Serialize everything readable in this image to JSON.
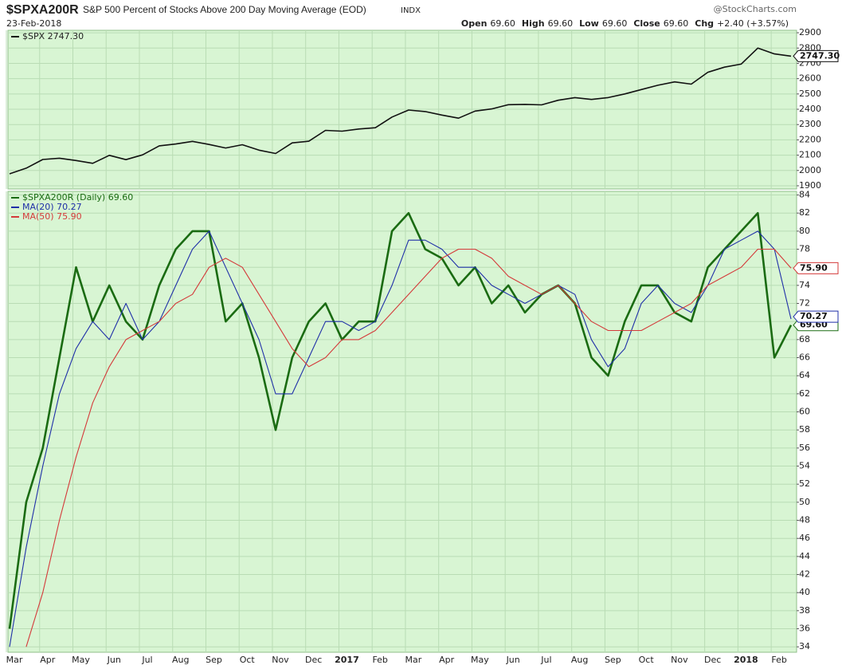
{
  "header": {
    "symbol": "$SPXA200R",
    "description": "S&P 500 Percent of Stocks Above 200 Day Moving Average (EOD)",
    "exchange": "INDX",
    "date": "23-Feb-2018",
    "source": "@StockCharts.com",
    "quote": [
      {
        "label": "Open",
        "value": "69.60"
      },
      {
        "label": "High",
        "value": "69.60"
      },
      {
        "label": "Low",
        "value": "69.60"
      },
      {
        "label": "Close",
        "value": "69.60"
      },
      {
        "label": "Chg",
        "value": "+2.40 (+3.57%)"
      }
    ]
  },
  "chart_data": [
    {
      "type": "line",
      "x": [
        "2016-03",
        "2016-03",
        "2016-04",
        "2016-04",
        "2016-05",
        "2016-05",
        "2016-06",
        "2016-06",
        "2016-07",
        "2016-07",
        "2016-08",
        "2016-08",
        "2016-09",
        "2016-09",
        "2016-10",
        "2016-10",
        "2016-11",
        "2016-11",
        "2016-12",
        "2016-12",
        "2017-01",
        "2017-01",
        "2017-02",
        "2017-02",
        "2017-03",
        "2017-03",
        "2017-04",
        "2017-04",
        "2017-05",
        "2017-05",
        "2017-06",
        "2017-06",
        "2017-07",
        "2017-07",
        "2017-08",
        "2017-08",
        "2017-09",
        "2017-09",
        "2017-10",
        "2017-10",
        "2017-11",
        "2017-11",
        "2017-12",
        "2017-12",
        "2018-01",
        "2018-01",
        "2018-02",
        "2018-02"
      ],
      "ylim": [
        1879,
        2916
      ],
      "yticks": [
        1900,
        2000,
        2100,
        2200,
        2300,
        2400,
        2500,
        2600,
        2700,
        2800,
        2900
      ],
      "grid": true,
      "series": [
        {
          "name": "$SPX 2747.30",
          "color": "#111111",
          "values": [
            1978,
            2015,
            2072,
            2080,
            2065,
            2047,
            2099,
            2071,
            2102,
            2161,
            2173,
            2190,
            2170,
            2147,
            2168,
            2133,
            2111,
            2180,
            2191,
            2262,
            2257,
            2271,
            2279,
            2349,
            2395,
            2385,
            2362,
            2342,
            2388,
            2402,
            2430,
            2432,
            2429,
            2459,
            2476,
            2464,
            2476,
            2500,
            2529,
            2557,
            2579,
            2564,
            2642,
            2675,
            2695,
            2800,
            2762,
            2747.3
          ],
          "value_labels": [
            null,
            null,
            null,
            null,
            null,
            null,
            null,
            null,
            null,
            null,
            null,
            null,
            null,
            null,
            null,
            null,
            null,
            null,
            null,
            null,
            null,
            null,
            null,
            null,
            null,
            null,
            null,
            null,
            null,
            null,
            null,
            null,
            null,
            null,
            null,
            null,
            null,
            null,
            null,
            null,
            null,
            null,
            null,
            null,
            null,
            null,
            null,
            "2747.30"
          ]
        }
      ]
    },
    {
      "type": "line",
      "x": [
        "2016-03",
        "2016-03",
        "2016-04",
        "2016-04",
        "2016-05",
        "2016-05",
        "2016-06",
        "2016-06",
        "2016-07",
        "2016-07",
        "2016-08",
        "2016-08",
        "2016-09",
        "2016-09",
        "2016-10",
        "2016-10",
        "2016-11",
        "2016-11",
        "2016-12",
        "2016-12",
        "2017-01",
        "2017-01",
        "2017-02",
        "2017-02",
        "2017-03",
        "2017-03",
        "2017-04",
        "2017-04",
        "2017-05",
        "2017-05",
        "2017-06",
        "2017-06",
        "2017-07",
        "2017-07",
        "2017-08",
        "2017-08",
        "2017-09",
        "2017-09",
        "2017-10",
        "2017-10",
        "2017-11",
        "2017-11",
        "2017-12",
        "2017-12",
        "2018-01",
        "2018-01",
        "2018-02",
        "2018-02"
      ],
      "xticks": [
        {
          "value": "2016-03",
          "label": "Mar"
        },
        {
          "value": "2016-04",
          "label": "Apr"
        },
        {
          "value": "2016-05",
          "label": "May"
        },
        {
          "value": "2016-06",
          "label": "Jun"
        },
        {
          "value": "2016-07",
          "label": "Jul"
        },
        {
          "value": "2016-08",
          "label": "Aug"
        },
        {
          "value": "2016-09",
          "label": "Sep"
        },
        {
          "value": "2016-10",
          "label": "Oct"
        },
        {
          "value": "2016-11",
          "label": "Nov"
        },
        {
          "value": "2016-12",
          "label": "Dec"
        },
        {
          "value": "2017-01",
          "label": "2017"
        },
        {
          "value": "2017-02",
          "label": "Feb"
        },
        {
          "value": "2017-03",
          "label": "Mar"
        },
        {
          "value": "2017-04",
          "label": "Apr"
        },
        {
          "value": "2017-05",
          "label": "May"
        },
        {
          "value": "2017-06",
          "label": "Jun"
        },
        {
          "value": "2017-07",
          "label": "Jul"
        },
        {
          "value": "2017-08",
          "label": "Aug"
        },
        {
          "value": "2017-09",
          "label": "Sep"
        },
        {
          "value": "2017-10",
          "label": "Oct"
        },
        {
          "value": "2017-11",
          "label": "Nov"
        },
        {
          "value": "2017-12",
          "label": "Dec"
        },
        {
          "value": "2018-01",
          "label": "2018"
        },
        {
          "value": "2018-02",
          "label": "Feb"
        }
      ],
      "ylim": [
        33.4,
        84.4
      ],
      "yticks": [
        34,
        36,
        38,
        40,
        42,
        44,
        46,
        48,
        50,
        52,
        54,
        56,
        58,
        60,
        62,
        64,
        66,
        68,
        70,
        72,
        74,
        76,
        78,
        80,
        82,
        84
      ],
      "grid": true,
      "series": [
        {
          "name": "$SPXA200R (Daily) 69.60",
          "color": "#1a6b12",
          "values": [
            36,
            50,
            56,
            66,
            76,
            70,
            74,
            70,
            68,
            74,
            78,
            80,
            80,
            70,
            72,
            66,
            58,
            66,
            70,
            72,
            68,
            70,
            70,
            80,
            82,
            78,
            77,
            74,
            76,
            72,
            74,
            71,
            73,
            74,
            72,
            66,
            64,
            70,
            74,
            74,
            71,
            70,
            76,
            78,
            80,
            82,
            66,
            69.6
          ],
          "value_labels": [
            null,
            null,
            null,
            null,
            null,
            null,
            null,
            null,
            null,
            null,
            null,
            null,
            null,
            null,
            null,
            null,
            null,
            null,
            null,
            null,
            null,
            null,
            null,
            null,
            null,
            null,
            null,
            null,
            null,
            null,
            null,
            null,
            null,
            null,
            null,
            null,
            null,
            null,
            null,
            null,
            null,
            null,
            null,
            null,
            null,
            null,
            null,
            "69.60"
          ]
        },
        {
          "name": "MA(20) 70.27",
          "color": "#1f2fa8",
          "values": [
            34,
            45,
            54,
            62,
            67,
            70,
            68,
            72,
            68,
            70,
            74,
            78,
            80,
            76,
            72,
            68,
            62,
            62,
            66,
            70,
            70,
            69,
            70,
            74,
            79,
            79,
            78,
            76,
            76,
            74,
            73,
            72,
            73,
            74,
            73,
            68,
            65,
            67,
            72,
            74,
            72,
            71,
            74,
            78,
            79,
            80,
            78,
            70.27
          ],
          "value_labels": [
            null,
            null,
            null,
            null,
            null,
            null,
            null,
            null,
            null,
            null,
            null,
            null,
            null,
            null,
            null,
            null,
            null,
            null,
            null,
            null,
            null,
            null,
            null,
            null,
            null,
            null,
            null,
            null,
            null,
            null,
            null,
            null,
            null,
            null,
            null,
            null,
            null,
            null,
            null,
            null,
            null,
            null,
            null,
            null,
            null,
            null,
            null,
            "70.27"
          ]
        },
        {
          "name": "MA(50) 75.90",
          "color": "#d43a3a",
          "values": [
            null,
            34,
            40,
            48,
            55,
            61,
            65,
            68,
            69,
            70,
            72,
            73,
            76,
            77,
            76,
            73,
            70,
            67,
            65,
            66,
            68,
            68,
            69,
            71,
            73,
            75,
            77,
            78,
            78,
            77,
            75,
            74,
            73,
            74,
            72,
            70,
            69,
            69,
            69,
            70,
            71,
            72,
            74,
            75,
            76,
            78,
            78,
            75.9
          ],
          "value_labels": [
            null,
            null,
            null,
            null,
            null,
            null,
            null,
            null,
            null,
            null,
            null,
            null,
            null,
            null,
            null,
            null,
            null,
            null,
            null,
            null,
            null,
            null,
            null,
            null,
            null,
            null,
            null,
            null,
            null,
            null,
            null,
            null,
            null,
            null,
            null,
            null,
            null,
            null,
            null,
            null,
            null,
            null,
            null,
            null,
            null,
            null,
            null,
            "75.90"
          ]
        }
      ]
    }
  ]
}
